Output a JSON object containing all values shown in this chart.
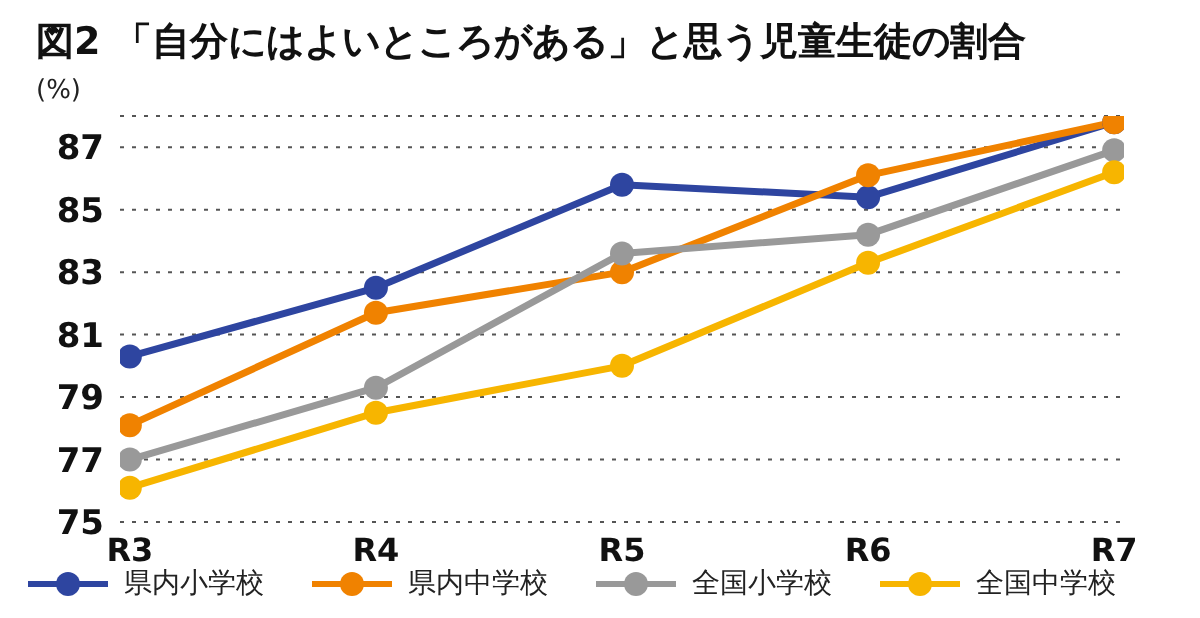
{
  "chart_data": {
    "type": "line",
    "title": "図2 「自分にはよいところがある」と思う児童生徒の割合",
    "ylabel": "(%)",
    "categories": [
      "R3",
      "R4",
      "R5",
      "R6",
      "R7"
    ],
    "series": [
      {
        "name": "県内小学校",
        "color": "#2e45a0",
        "values": [
          80.3,
          82.5,
          85.8,
          85.4,
          87.8
        ]
      },
      {
        "name": "県内中学校",
        "color": "#f08200",
        "values": [
          78.1,
          81.7,
          83.0,
          86.1,
          87.8
        ]
      },
      {
        "name": "全国小学校",
        "color": "#999999",
        "values": [
          77.0,
          79.3,
          83.6,
          84.2,
          86.9
        ]
      },
      {
        "name": "全国中学校",
        "color": "#f7b500",
        "values": [
          76.1,
          78.5,
          80.0,
          83.3,
          86.2
        ]
      }
    ],
    "ylim": [
      75,
      88
    ],
    "yticks": [
      75,
      77,
      79,
      81,
      83,
      85,
      87
    ],
    "grid": "y",
    "legend": "bottom",
    "marker": "circle",
    "line_style": "solid"
  }
}
